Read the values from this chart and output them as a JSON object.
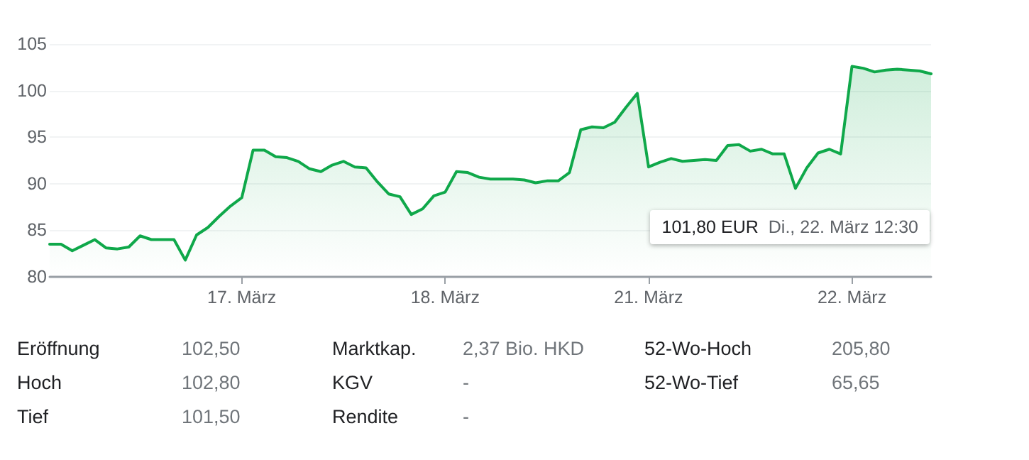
{
  "chart_data": {
    "type": "area",
    "categories": [
      null,
      null,
      null,
      null,
      null,
      null,
      null,
      null,
      null,
      null,
      null,
      null,
      null,
      null,
      null,
      null,
      null,
      "17. März",
      null,
      null,
      null,
      null,
      null,
      null,
      null,
      null,
      null,
      null,
      null,
      null,
      null,
      null,
      null,
      null,
      null,
      "18. März",
      null,
      null,
      null,
      null,
      null,
      null,
      null,
      null,
      null,
      null,
      null,
      null,
      null,
      null,
      null,
      null,
      null,
      "21. März",
      null,
      null,
      null,
      null,
      null,
      null,
      null,
      null,
      null,
      null,
      null,
      null,
      null,
      null,
      null,
      null,
      null,
      "22. März",
      null,
      null,
      null,
      null,
      null,
      null,
      null
    ],
    "series": [
      {
        "color": "#0fa84a",
        "values": [
          83.5,
          83.5,
          82.8,
          83.4,
          84.0,
          83.1,
          83.0,
          83.2,
          84.4,
          84.0,
          84.0,
          84.0,
          81.8,
          84.5,
          85.3,
          86.5,
          87.6,
          88.5,
          93.6,
          93.6,
          92.9,
          92.8,
          92.4,
          91.6,
          91.3,
          92.0,
          92.4,
          91.8,
          91.7,
          90.2,
          88.9,
          88.6,
          86.7,
          87.3,
          88.7,
          89.1,
          91.3,
          91.2,
          90.7,
          90.5,
          90.5,
          90.5,
          90.4,
          90.1,
          90.3,
          90.3,
          91.2,
          95.8,
          96.1,
          96.0,
          96.6,
          98.2,
          99.7,
          91.8,
          92.3,
          92.7,
          92.4,
          92.5,
          92.6,
          92.5,
          94.1,
          94.2,
          93.5,
          93.7,
          93.2,
          93.2,
          89.5,
          91.7,
          93.3,
          93.7,
          93.2,
          102.6,
          102.4,
          102.0,
          102.2,
          102.3,
          102.2,
          102.1,
          101.8
        ]
      }
    ],
    "ylim": [
      80,
      105
    ],
    "yticks": [
      80,
      85,
      90,
      95,
      100,
      105
    ],
    "grid": "y",
    "marker": "none",
    "line_style": "solid",
    "annotations": [
      "101,80 EUR",
      "Di., 22. März 12:30",
      "Eröffnung",
      "102,50",
      "Marktkap.",
      "2,37 Bio. HKD",
      "52-Wo-Hoch",
      "205,80",
      "Hoch",
      "102,80",
      "KGV",
      "-",
      "52-Wo-Tief",
      "65,65",
      "Tief",
      "101,50",
      "Rendite",
      "-"
    ]
  }
}
